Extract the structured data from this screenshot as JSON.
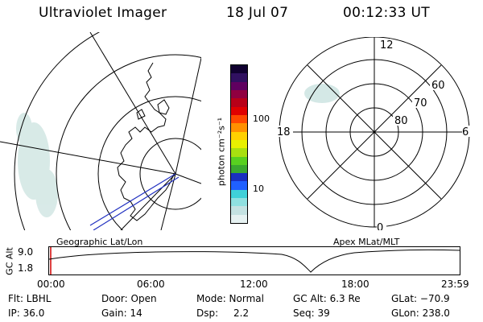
{
  "header": {
    "title": "Ultraviolet Imager",
    "date": "18 Jul 07",
    "time": "00:12:33 UT"
  },
  "colorbar": {
    "unit": "photon cm⁻²s⁻¹",
    "tick_labels": [
      "100",
      "10"
    ],
    "colors": [
      "#e6f2f2",
      "#c4e2e2",
      "#8fe0e0",
      "#3fd0d8",
      "#2060ff",
      "#1a30c0",
      "#3aa830",
      "#58d020",
      "#a8e010",
      "#e8f000",
      "#ffd000",
      "#ff9000",
      "#ff4800",
      "#e00000",
      "#b80018",
      "#900040",
      "#600060",
      "#301060",
      "#100030"
    ]
  },
  "polar_plot": {
    "mlt_labels": {
      "top": "12",
      "bottom": "0",
      "left": "18",
      "right": "6"
    },
    "lat_labels": [
      "60",
      "70",
      "80"
    ]
  },
  "geo_label": "Geographic Lat/Lon",
  "apex_label": "Apex MLat/MLT",
  "alt_plot": {
    "ylabel": "GC Alt",
    "yticks": [
      "9.0",
      "1.8"
    ],
    "xticks": [
      "00:00",
      "06:00",
      "12:00",
      "18:00",
      "23:59"
    ]
  },
  "footer": {
    "filter": "Flt: LBHL",
    "ip": "IP: 36.0",
    "door": "Door: Open",
    "gain": "Gain: 14",
    "mode": "Mode: Normal",
    "dsp_label": "Dsp:",
    "dsp_value": "2.2",
    "gc_alt": "GC Alt: 6.3 Re",
    "seq": "Seq: 39",
    "glat": "GLat: −70.9",
    "glon": "GLon: 238.0"
  }
}
